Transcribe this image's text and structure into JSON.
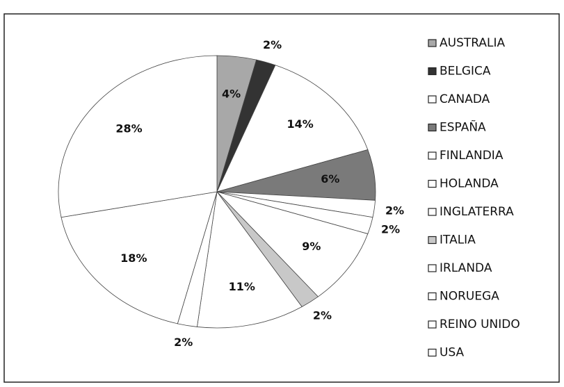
{
  "chart_data": {
    "type": "pie",
    "categories": [
      "AUSTRALIA",
      "BELGICA",
      "CANADA",
      "ESPAÑA",
      "FINLANDIA",
      "HOLANDA",
      "INGLATERRA",
      "ITALIA",
      "IRLANDA",
      "NORUEGA",
      "REINO UNIDO",
      "USA"
    ],
    "values": [
      4,
      2,
      14,
      6,
      2,
      2,
      9,
      2,
      11,
      2,
      18,
      28
    ],
    "value_labels": [
      "4%",
      "2%",
      "14%",
      "6%",
      "2%",
      "2%",
      "9%",
      "2%",
      "11%",
      "2%",
      "18%",
      "28%"
    ],
    "colors": [
      "#a8a8a8",
      "#333333",
      "#ffffff",
      "#7a7a7a",
      "#ffffff",
      "#ffffff",
      "#ffffff",
      "#c8c8c8",
      "#ffffff",
      "#ffffff",
      "#ffffff",
      "#ffffff"
    ],
    "legend": "right"
  }
}
